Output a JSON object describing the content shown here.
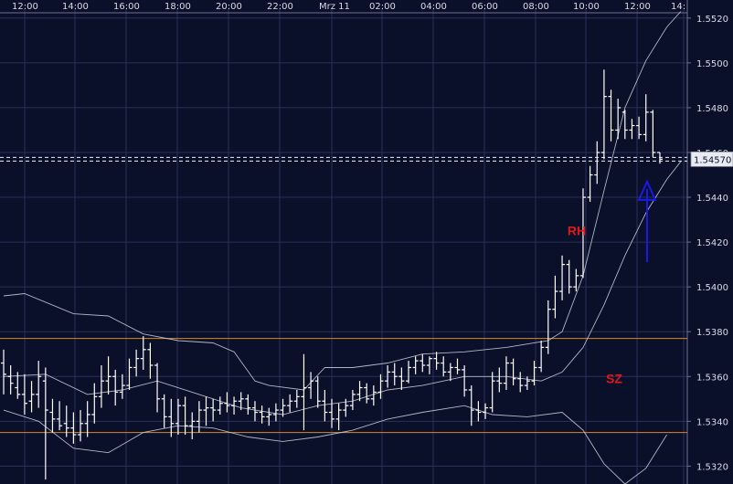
{
  "chart_data": {
    "type": "line",
    "x_ticks": [
      "12:00",
      "14:00",
      "16:00",
      "18:00",
      "20:00",
      "22:00",
      "Mrz 11",
      "02:00",
      "04:00",
      "06:00",
      "08:00",
      "10:00",
      "12:00",
      "14:"
    ],
    "y_ticks": [
      "1.5320",
      "1.5340",
      "1.5360",
      "1.5380",
      "1.5400",
      "1.5420",
      "1.5440",
      "1.5460",
      "1.5480",
      "1.5500",
      "1.5520"
    ],
    "ylim": [
      1.5312,
      1.5524
    ],
    "current_price_label": "1.54570",
    "current_price": 1.5457,
    "horizontal_levels": [
      1.5377,
      1.5335
    ],
    "colors": {
      "background": "#0a0f2a",
      "grid": "#2a3158",
      "candles": "#ffffff",
      "bands": "#cfd3df",
      "levels": "#d98b1f",
      "arrow": "#1a1ae6",
      "annotation": "#e01818"
    },
    "annotations": [
      {
        "text": "RH",
        "x": "10:00",
        "price": 1.5423
      },
      {
        "text": "SZ",
        "x": "12:00",
        "price": 1.5357
      }
    ],
    "series": [
      {
        "name": "",
        "note": "price bars (high/low/open/close)",
        "bars": [
          [
            1.5372,
            1.5352,
            1.5366,
            1.5361
          ],
          [
            1.5365,
            1.5352,
            1.536,
            1.5357
          ],
          [
            1.5362,
            1.535,
            1.5355,
            1.5352
          ],
          [
            1.5361,
            1.5343,
            1.5352,
            1.5348
          ],
          [
            1.5358,
            1.5344,
            1.5349,
            1.5352
          ],
          [
            1.5367,
            1.5346,
            1.5352,
            1.536
          ],
          [
            1.5364,
            1.5314,
            1.5358,
            1.5345
          ],
          [
            1.535,
            1.5335,
            1.5344,
            1.5341
          ],
          [
            1.5349,
            1.5336,
            1.5341,
            1.5338
          ],
          [
            1.5347,
            1.5333,
            1.5339,
            1.5337
          ],
          [
            1.5344,
            1.533,
            1.5337,
            1.5334
          ],
          [
            1.5345,
            1.5331,
            1.5334,
            1.5339
          ],
          [
            1.5349,
            1.5333,
            1.5339,
            1.5343
          ],
          [
            1.5357,
            1.5339,
            1.5343,
            1.5351
          ],
          [
            1.5365,
            1.5346,
            1.5351,
            1.5358
          ],
          [
            1.5369,
            1.5352,
            1.5358,
            1.536
          ],
          [
            1.5363,
            1.5347,
            1.536,
            1.5353
          ],
          [
            1.5361,
            1.535,
            1.5353,
            1.5356
          ],
          [
            1.5368,
            1.5354,
            1.5356,
            1.5364
          ],
          [
            1.5372,
            1.536,
            1.5364,
            1.5368
          ],
          [
            1.5378,
            1.5363,
            1.5368,
            1.5372
          ],
          [
            1.5375,
            1.5359,
            1.5372,
            1.5365
          ],
          [
            1.5366,
            1.5344,
            1.5365,
            1.535
          ],
          [
            1.5352,
            1.5337,
            1.535,
            1.5342
          ],
          [
            1.535,
            1.5333,
            1.5342,
            1.5339
          ],
          [
            1.535,
            1.5334,
            1.5339,
            1.5347
          ],
          [
            1.5351,
            1.5334,
            1.5347,
            1.5338
          ],
          [
            1.5344,
            1.5332,
            1.5338,
            1.534
          ],
          [
            1.5349,
            1.5335,
            1.534,
            1.5345
          ],
          [
            1.5351,
            1.5338,
            1.5345,
            1.5346
          ],
          [
            1.535,
            1.534,
            1.5346,
            1.5345
          ],
          [
            1.5351,
            1.5343,
            1.5345,
            1.5348
          ],
          [
            1.5353,
            1.5344,
            1.5348,
            1.5347
          ],
          [
            1.5351,
            1.5343,
            1.5347,
            1.5349
          ],
          [
            1.5353,
            1.5345,
            1.5349,
            1.535
          ],
          [
            1.5352,
            1.5343,
            1.535,
            1.5346
          ],
          [
            1.5349,
            1.534,
            1.5346,
            1.5344
          ],
          [
            1.5347,
            1.5339,
            1.5344,
            1.5342
          ],
          [
            1.5346,
            1.5338,
            1.5342,
            1.5343
          ],
          [
            1.5348,
            1.534,
            1.5343,
            1.5345
          ],
          [
            1.535,
            1.5342,
            1.5345,
            1.5347
          ],
          [
            1.5352,
            1.5344,
            1.5347,
            1.5349
          ],
          [
            1.5354,
            1.5346,
            1.5349,
            1.5351
          ],
          [
            1.537,
            1.5336,
            1.5351,
            1.5355
          ],
          [
            1.5362,
            1.535,
            1.5355,
            1.5358
          ],
          [
            1.536,
            1.5346,
            1.5358,
            1.5349
          ],
          [
            1.5354,
            1.534,
            1.5349,
            1.5344
          ],
          [
            1.535,
            1.5337,
            1.5344,
            1.5341
          ],
          [
            1.5348,
            1.5336,
            1.5341,
            1.5345
          ],
          [
            1.535,
            1.5342,
            1.5345,
            1.5347
          ],
          [
            1.5354,
            1.5345,
            1.5347,
            1.5352
          ],
          [
            1.5358,
            1.5349,
            1.5352,
            1.5355
          ],
          [
            1.5357,
            1.5348,
            1.5355,
            1.535
          ],
          [
            1.5356,
            1.5347,
            1.535,
            1.5353
          ],
          [
            1.5361,
            1.535,
            1.5353,
            1.5358
          ],
          [
            1.5365,
            1.5355,
            1.5358,
            1.5362
          ],
          [
            1.5366,
            1.5356,
            1.5362,
            1.536
          ],
          [
            1.5364,
            1.5354,
            1.536,
            1.5358
          ],
          [
            1.5367,
            1.5357,
            1.5358,
            1.5364
          ],
          [
            1.5369,
            1.5361,
            1.5364,
            1.5367
          ],
          [
            1.537,
            1.5362,
            1.5367,
            1.5365
          ],
          [
            1.5369,
            1.5361,
            1.5365,
            1.5368
          ],
          [
            1.5371,
            1.5363,
            1.5368,
            1.5366
          ],
          [
            1.5369,
            1.536,
            1.5366,
            1.5362
          ],
          [
            1.5366,
            1.5358,
            1.5362,
            1.5364
          ],
          [
            1.5368,
            1.5361,
            1.5364,
            1.5363
          ],
          [
            1.5365,
            1.5351,
            1.5363,
            1.5354
          ],
          [
            1.5356,
            1.5338,
            1.5354,
            1.5345
          ],
          [
            1.5349,
            1.534,
            1.5345,
            1.5344
          ],
          [
            1.5348,
            1.5341,
            1.5344,
            1.5346
          ],
          [
            1.5362,
            1.5344,
            1.5346,
            1.5358
          ],
          [
            1.5364,
            1.5353,
            1.5358,
            1.5357
          ],
          [
            1.5369,
            1.5354,
            1.5357,
            1.5366
          ],
          [
            1.5368,
            1.5356,
            1.5366,
            1.5359
          ],
          [
            1.5362,
            1.5353,
            1.5359,
            1.5356
          ],
          [
            1.536,
            1.5354,
            1.5356,
            1.5358
          ],
          [
            1.5367,
            1.5356,
            1.5358,
            1.5364
          ],
          [
            1.5376,
            1.5362,
            1.5364,
            1.5373
          ],
          [
            1.5394,
            1.537,
            1.5373,
            1.539
          ],
          [
            1.5405,
            1.5386,
            1.539,
            1.5398
          ],
          [
            1.5414,
            1.5394,
            1.5398,
            1.541
          ],
          [
            1.5412,
            1.5397,
            1.541,
            1.54
          ],
          [
            1.5408,
            1.5398,
            1.54,
            1.5405
          ],
          [
            1.5444,
            1.5404,
            1.5405,
            1.544
          ],
          [
            1.5454,
            1.5438,
            1.544,
            1.545
          ],
          [
            1.5465,
            1.5446,
            1.545,
            1.546
          ],
          [
            1.5497,
            1.5457,
            1.546,
            1.5485
          ],
          [
            1.5488,
            1.5465,
            1.5485,
            1.547
          ],
          [
            1.5484,
            1.5466,
            1.547,
            1.548
          ],
          [
            1.5479,
            1.5466,
            1.5478,
            1.547
          ],
          [
            1.5475,
            1.5466,
            1.547,
            1.5472
          ],
          [
            1.5476,
            1.5466,
            1.5472,
            1.5468
          ],
          [
            1.5486,
            1.5465,
            1.5468,
            1.5478
          ],
          [
            1.5479,
            1.5458,
            1.5478,
            1.546
          ],
          [
            1.546,
            1.5455,
            1.546,
            1.5457
          ]
        ]
      },
      {
        "name": "",
        "note": "upper band",
        "values": [
          [
            0,
            1.5396
          ],
          [
            3,
            1.5397
          ],
          [
            10,
            1.5388
          ],
          [
            15,
            1.5387
          ],
          [
            20,
            1.5379
          ],
          [
            25,
            1.5376
          ],
          [
            30,
            1.5375
          ],
          [
            33,
            1.5371
          ],
          [
            36,
            1.5358
          ],
          [
            38,
            1.5356
          ],
          [
            43,
            1.5354
          ],
          [
            46,
            1.5364
          ],
          [
            50,
            1.5364
          ],
          [
            55,
            1.5366
          ],
          [
            60,
            1.537
          ],
          [
            66,
            1.5371
          ],
          [
            72,
            1.5373
          ],
          [
            78,
            1.5376
          ],
          [
            80,
            1.538
          ],
          [
            83,
            1.5405
          ],
          [
            86,
            1.5443
          ],
          [
            89,
            1.548
          ],
          [
            92,
            1.5501
          ],
          [
            95,
            1.5516
          ],
          [
            97,
            1.5523
          ]
        ]
      },
      {
        "name": "",
        "note": "middle band",
        "values": [
          [
            0,
            1.536
          ],
          [
            6,
            1.5361
          ],
          [
            12,
            1.5352
          ],
          [
            17,
            1.5354
          ],
          [
            22,
            1.5358
          ],
          [
            28,
            1.5352
          ],
          [
            34,
            1.5346
          ],
          [
            40,
            1.5343
          ],
          [
            45,
            1.5347
          ],
          [
            50,
            1.5349
          ],
          [
            55,
            1.5354
          ],
          [
            60,
            1.5356
          ],
          [
            66,
            1.536
          ],
          [
            72,
            1.536
          ],
          [
            77,
            1.5358
          ],
          [
            80,
            1.5362
          ],
          [
            83,
            1.5373
          ],
          [
            86,
            1.5392
          ],
          [
            89,
            1.5414
          ],
          [
            92,
            1.5433
          ],
          [
            95,
            1.5448
          ],
          [
            97,
            1.5456
          ]
        ]
      },
      {
        "name": "",
        "note": "lower band",
        "values": [
          [
            0,
            1.5345
          ],
          [
            5,
            1.534
          ],
          [
            10,
            1.5328
          ],
          [
            15,
            1.5326
          ],
          [
            20,
            1.5335
          ],
          [
            25,
            1.5338
          ],
          [
            30,
            1.5337
          ],
          [
            35,
            1.5333
          ],
          [
            40,
            1.5331
          ],
          [
            45,
            1.5333
          ],
          [
            50,
            1.5336
          ],
          [
            55,
            1.5341
          ],
          [
            60,
            1.5344
          ],
          [
            66,
            1.5347
          ],
          [
            70,
            1.5343
          ],
          [
            75,
            1.5342
          ],
          [
            80,
            1.5344
          ],
          [
            83,
            1.5336
          ],
          [
            86,
            1.5321
          ],
          [
            89,
            1.5312
          ],
          [
            92,
            1.5319
          ],
          [
            95,
            1.5334
          ]
        ]
      }
    ]
  }
}
